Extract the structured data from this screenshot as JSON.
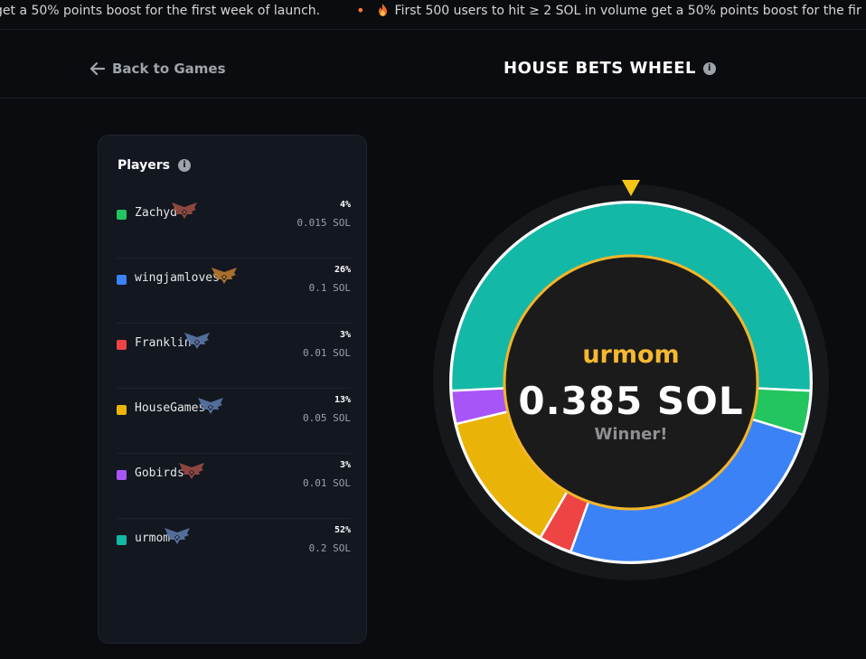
{
  "ticker": {
    "items": [
      "get a 50% points boost for the first week of launch.",
      "First 500 users to hit ≥ 2 SOL in volume get a 50% points boost for the fir"
    ]
  },
  "header": {
    "back_label": "Back to Games",
    "title": "HOUSE BETS WHEEL"
  },
  "players_panel": {
    "title": "Players",
    "players": [
      {
        "name": "Zachyd",
        "pct": "4%",
        "amount": "0.015 SOL",
        "color": "#22c55e",
        "rank_icon": "bronze-wings-rank-icon",
        "rank_color": "#9b4b43",
        "icon_x": 60
      },
      {
        "name": "wingjamloves",
        "pct": "26%",
        "amount": "0.1 SOL",
        "color": "#3b82f6",
        "rank_icon": "gold-wings-rank-icon",
        "rank_color": "#b8792f",
        "icon_x": 104
      },
      {
        "name": "Franklin",
        "pct": "3%",
        "amount": "0.01 SOL",
        "color": "#ef4444",
        "rank_icon": "silver-wings-rank-icon",
        "rank_color": "#5b77a6",
        "icon_x": 74
      },
      {
        "name": "HouseGames",
        "pct": "13%",
        "amount": "0.05 SOL",
        "color": "#eab308",
        "rank_icon": "silver-wings-rank-icon",
        "rank_color": "#5b77a6",
        "icon_x": 89
      },
      {
        "name": "Gobirds",
        "pct": "3%",
        "amount": "0.01 SOL",
        "color": "#a855f7",
        "rank_icon": "bronze-wings-rank-icon",
        "rank_color": "#9b4b43",
        "icon_x": 68
      },
      {
        "name": "urmom",
        "pct": "52%",
        "amount": "0.2 SOL",
        "color": "#14b8a6",
        "rank_icon": "silver-wings-rank-icon",
        "rank_color": "#5b77a6",
        "icon_x": 52
      }
    ]
  },
  "wheel": {
    "winner_name": "urmom",
    "amount": "0.385 SOL",
    "winner_label": "Winner!",
    "pointer_color": "#f5c518",
    "ring_color": "#f3b52b",
    "segments": [
      {
        "player": "urmom",
        "share": 52,
        "color": "#14b8a6"
      },
      {
        "player": "Zachyd",
        "share": 4,
        "color": "#22c55e"
      },
      {
        "player": "wingjamloves",
        "share": 26,
        "color": "#3b82f6"
      },
      {
        "player": "Franklin",
        "share": 3,
        "color": "#ef4444"
      },
      {
        "player": "HouseGames",
        "share": 13,
        "color": "#eab308"
      },
      {
        "player": "Gobirds",
        "share": 3,
        "color": "#a855f7"
      }
    ]
  }
}
